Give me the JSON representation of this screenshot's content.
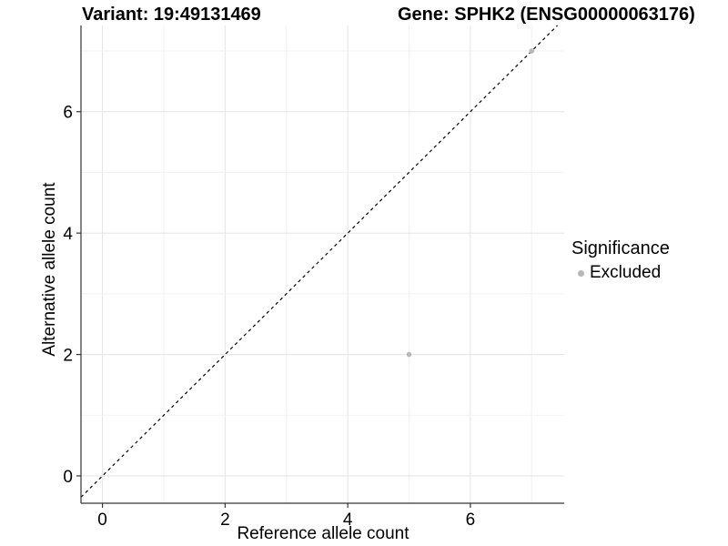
{
  "titles": {
    "variant": "Variant: 19:49131469",
    "gene": "Gene: SPHK2 (ENSG00000063176)"
  },
  "legend": {
    "title": "Significance",
    "items": [
      {
        "label": "Excluded"
      }
    ]
  },
  "chart_data": {
    "type": "scatter",
    "xlabel": "Reference allele count",
    "ylabel": "Alternative allele count",
    "xlim": [
      -0.35,
      7.53
    ],
    "ylim": [
      -0.45,
      7.42
    ],
    "xticks": [
      0,
      2,
      4,
      6
    ],
    "yticks": [
      0,
      2,
      4,
      6
    ],
    "grid": "on, gridline at every integer (major at even ticks, minor at odd)",
    "legend_position": "right",
    "series": [
      {
        "name": "Excluded",
        "color": "#b8b8b8",
        "point_radius": 2.8,
        "points": [
          [
            5,
            2
          ],
          [
            7,
            7
          ]
        ]
      }
    ],
    "reference_line": {
      "equation": "y = x",
      "style": "dashed",
      "color": "#000000"
    }
  },
  "colors": {
    "background": "#ffffff",
    "grid_major": "#e6e6e6",
    "grid_minor": "#f2f2f2",
    "axis_line": "#343434",
    "text": "#000000"
  }
}
